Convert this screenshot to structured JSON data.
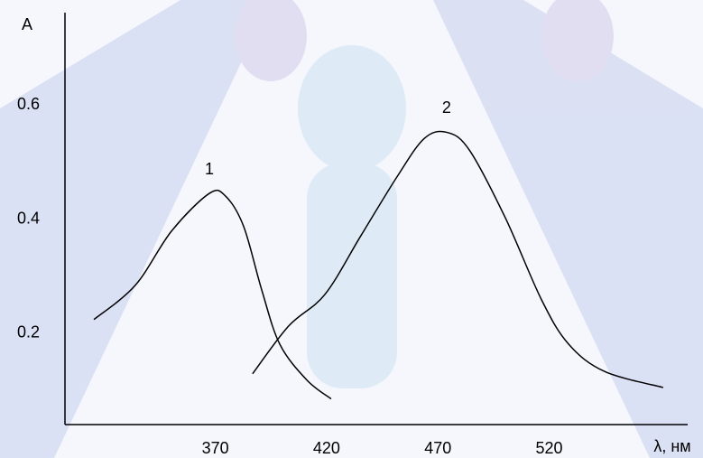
{
  "chart_data": {
    "type": "line",
    "y_label": "A",
    "x_label": "λ, нм",
    "xlim": [
      300,
      579
    ],
    "ylim": [
      0.04,
      0.76
    ],
    "xticks": [
      370,
      420,
      470,
      520
    ],
    "yticks": [
      0.2,
      0.4,
      0.6
    ],
    "series": [
      {
        "name": "1",
        "color": "#000000",
        "x": [
          313,
          331.6,
          347.9,
          364.9,
          372.2,
          380.3,
          388.4,
          396.5,
          408.7,
          419.6
        ],
        "values": [
          0.224,
          0.284,
          0.379,
          0.445,
          0.44,
          0.387,
          0.276,
          0.181,
          0.118,
          0.085
        ]
      },
      {
        "name": "2",
        "color": "#000000",
        "x": [
          384.3,
          400.6,
          416.8,
          433.0,
          449.2,
          461.4,
          471.5,
          481.7,
          497.9,
          514.1,
          526.3,
          542.5,
          568.8
        ],
        "values": [
          0.129,
          0.213,
          0.268,
          0.371,
          0.474,
          0.541,
          0.552,
          0.521,
          0.402,
          0.259,
          0.181,
          0.133,
          0.105
        ]
      }
    ]
  }
}
